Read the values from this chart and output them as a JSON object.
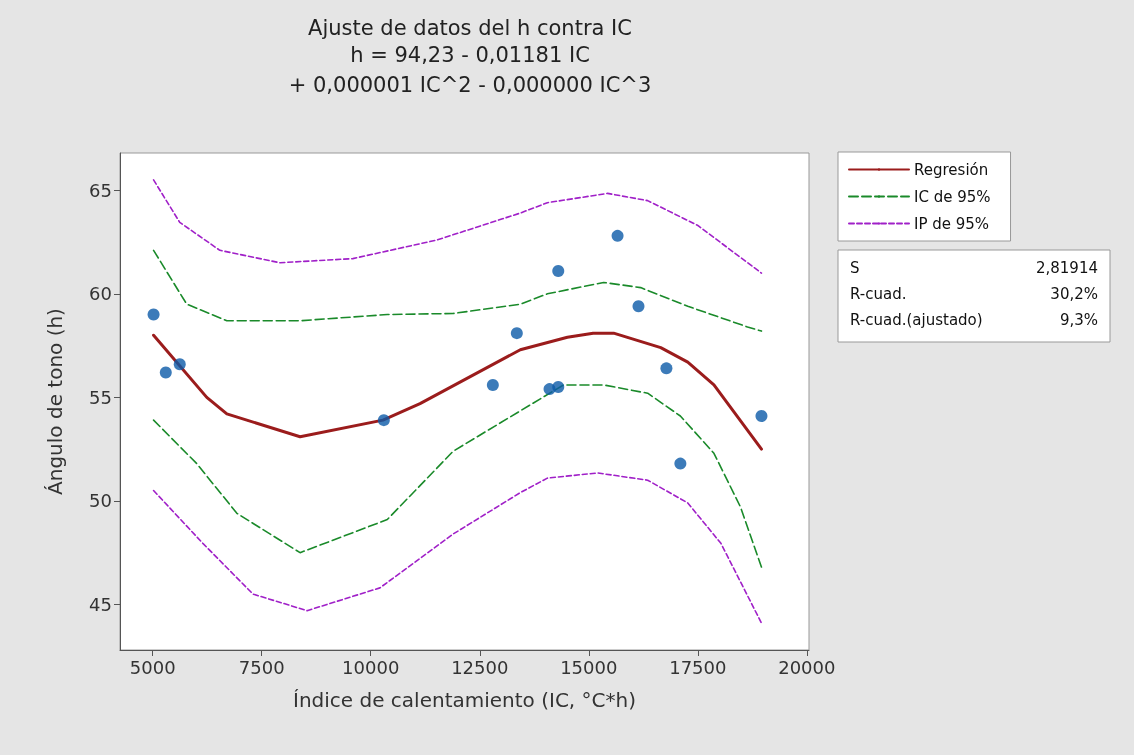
{
  "chart_data": {
    "type": "scatter",
    "title": "Ajuste de datos del h contra IC",
    "subtitle": "h = 94,23 - 0,01181 IC\n+ 0,000001 IC^2 - 0,000000 IC^3",
    "xlabel": "Índice de calentamiento (IC, °C*h)",
    "ylabel": "Ángulo de tono (h)",
    "xlim": [
      4250,
      20050
    ],
    "xticks": [
      5000,
      7500,
      10000,
      12500,
      15000,
      17500,
      20000
    ],
    "ylim": [
      42.8,
      66.8
    ],
    "yticks": [
      45,
      50,
      55,
      60,
      65
    ],
    "grid": false,
    "legend": "right",
    "marker": "circle",
    "annotations": [
      "S 2,81914",
      "R-cuad. 30,2%",
      "R-cuad.(ajustado) 9,3%"
    ],
    "series": [
      {
        "color": "#0b5aa8",
        "x": [
          5020,
          5300,
          5620,
          10300,
          12800,
          13350,
          14100,
          14300,
          14300,
          15660,
          16140,
          16780,
          17100,
          18960
        ],
        "values": [
          59.0,
          56.2,
          56.6,
          53.9,
          55.6,
          58.1,
          55.4,
          55.5,
          61.1,
          62.8,
          59.4,
          56.4,
          51.8,
          54.1
        ]
      },
      {
        "type": "line",
        "name": "Regresión",
        "color": "#9b1c1c",
        "line_style": "solid",
        "marker": "none",
        "x": [
          5020,
          6240,
          6700,
          8380,
          10280,
          11130,
          13430,
          14510,
          15100,
          15570,
          16650,
          17270,
          17870,
          18960
        ],
        "values": [
          58.0,
          55.0,
          54.2,
          53.1,
          53.9,
          54.7,
          57.3,
          57.9,
          58.1,
          58.1,
          57.4,
          56.7,
          55.6,
          52.5
        ]
      },
      {
        "type": "line",
        "name": "IC de 95%",
        "color": "#1a8a2a",
        "line_style": "dashed",
        "marker": "none",
        "x": [
          5020,
          5780,
          6700,
          8380,
          10380,
          11890,
          13430,
          14050,
          15340,
          16190,
          17270,
          18640,
          18960
        ],
        "values": [
          62.1,
          59.5,
          58.7,
          58.7,
          59.0,
          59.05,
          59.5,
          60.0,
          60.55,
          60.3,
          59.4,
          58.4,
          58.2
        ]
      },
      {
        "type": "line",
        "name": null,
        "color": "#1a8a2a",
        "line_style": "dashed",
        "marker": "none",
        "x": [
          5020,
          6010,
          6930,
          8380,
          10380,
          11890,
          14420,
          15340,
          16350,
          17100,
          17870,
          18480,
          18960
        ],
        "values": [
          53.9,
          51.8,
          49.4,
          47.5,
          49.1,
          52.4,
          55.6,
          55.6,
          55.2,
          54.1,
          52.3,
          49.7,
          46.8
        ]
      },
      {
        "type": "line",
        "name": "IP de 95%",
        "color": "#a020c8",
        "line_style": "dotted",
        "marker": "none",
        "x": [
          5020,
          5620,
          6540,
          7920,
          9590,
          11520,
          13430,
          14050,
          15430,
          16350,
          17500,
          18960
        ],
        "values": [
          65.5,
          63.45,
          62.1,
          61.5,
          61.7,
          62.6,
          63.9,
          64.4,
          64.85,
          64.5,
          63.3,
          61.0
        ]
      },
      {
        "type": "line",
        "name": null,
        "color": "#a020c8",
        "line_style": "dotted",
        "marker": "none",
        "x": [
          5020,
          6150,
          7300,
          8540,
          10210,
          11890,
          13430,
          14050,
          15200,
          16350,
          17270,
          18030,
          18960
        ],
        "values": [
          50.5,
          47.95,
          45.5,
          44.7,
          45.8,
          48.4,
          50.4,
          51.1,
          51.35,
          51.0,
          49.9,
          47.95,
          44.1
        ]
      }
    ]
  }
}
